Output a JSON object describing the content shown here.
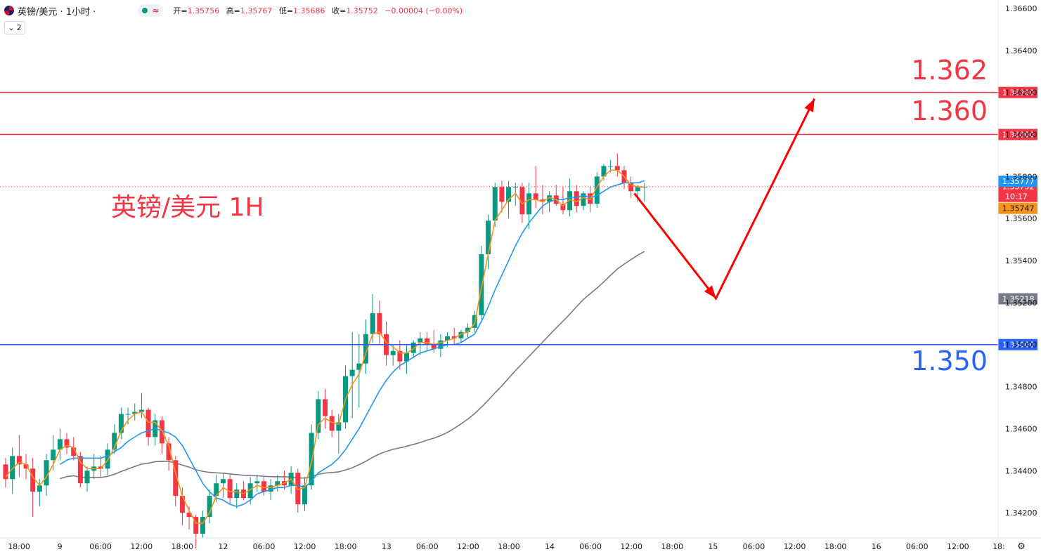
{
  "legend": {
    "symbol": "英镑/美元 · 1小时 ·",
    "approx_icon": "≈",
    "ohlc": {
      "open_label": "开=",
      "open": "1.35756",
      "high_label": "高=",
      "high": "1.35767",
      "low_label": "低=",
      "low": "1.35686",
      "close_label": "收=",
      "close": "1.35752",
      "change": "−0.00004 (−0.00%)"
    }
  },
  "indicator_toggle": {
    "count": "2",
    "icon": "chevron-down-icon"
  },
  "annotations": {
    "title": "英镑/美元 1H",
    "level_1362": "1.362",
    "level_1360": "1.360",
    "level_1350": "1.350"
  },
  "colors": {
    "up": "#089981",
    "down": "#f23645",
    "ma_fast": "#f7931a",
    "ma_mid": "#2196f3",
    "ma_slow": "#787b86",
    "resistance": "#f23645",
    "support": "#2962ff",
    "arrow": "#ff0000"
  },
  "chart_data": {
    "type": "candlestick",
    "ylim": [
      1.3408,
      1.3664
    ],
    "price_ticks": [
      "1.34200",
      "1.34400",
      "1.34600",
      "1.34800",
      "1.35000",
      "1.35200",
      "1.35400",
      "1.35600",
      "1.35800",
      "1.36000",
      "1.36200",
      "1.36400",
      "1.36600"
    ],
    "time_ticks": [
      "18:00",
      "9",
      "06:00",
      "12:00",
      "18:00",
      "12",
      "06:00",
      "12:00",
      "18:00",
      "13",
      "06:00",
      "12:00",
      "18:00",
      "14",
      "06:00",
      "12:00",
      "18:00",
      "15",
      "06:00",
      "12:00",
      "18:00",
      "16",
      "06:00",
      "12:00",
      "18:"
    ],
    "price_lines": [
      {
        "name": "resistance-1.362",
        "value": 1.362,
        "label": "1.36200",
        "color": "#f23645"
      },
      {
        "name": "resistance-1.360",
        "value": 1.36,
        "label": "1.36000",
        "color": "#f23645"
      },
      {
        "name": "support-1.350",
        "value": 1.35,
        "label": "1.35000",
        "color": "#2962ff"
      }
    ],
    "last_price": {
      "value": 1.35752,
      "label": "1.35752",
      "countdown": "10:17"
    },
    "ma_labels": [
      {
        "name": "ma-fast-value",
        "value": 1.35747,
        "label": "1.35747",
        "color": "#f7931a"
      },
      {
        "name": "ma-mid-value",
        "value": 1.35777,
        "label": "1.35777",
        "color": "#2196f3"
      },
      {
        "name": "ma-slow-value",
        "value": 1.35218,
        "label": "1.35218",
        "color": "#787b86"
      }
    ],
    "forecast_path": [
      {
        "t": 92.5,
        "price": 1.3572
      },
      {
        "t": 104.5,
        "price": 1.3522
      },
      {
        "t": 119,
        "price": 1.3617
      }
    ],
    "candles": [
      [
        1.3443,
        1.3446,
        1.3432,
        1.3436
      ],
      [
        1.3436,
        1.3451,
        1.3429,
        1.3447
      ],
      [
        1.3447,
        1.3457,
        1.3437,
        1.3443
      ],
      [
        1.3443,
        1.3448,
        1.3436,
        1.3441
      ],
      [
        1.3441,
        1.3446,
        1.3418,
        1.343
      ],
      [
        1.343,
        1.3436,
        1.3423,
        1.3433
      ],
      [
        1.3433,
        1.3448,
        1.3428,
        1.3445
      ],
      [
        1.3445,
        1.3457,
        1.344,
        1.345
      ],
      [
        1.345,
        1.346,
        1.3445,
        1.3455
      ],
      [
        1.3455,
        1.3458,
        1.3448,
        1.3451
      ],
      [
        1.3451,
        1.3456,
        1.3445,
        1.3447
      ],
      [
        1.3447,
        1.3449,
        1.3432,
        1.3434
      ],
      [
        1.3434,
        1.3442,
        1.343,
        1.344
      ],
      [
        1.344,
        1.3448,
        1.3436,
        1.3442
      ],
      [
        1.3442,
        1.3447,
        1.3437,
        1.3441
      ],
      [
        1.3441,
        1.3453,
        1.3438,
        1.345
      ],
      [
        1.345,
        1.3462,
        1.3448,
        1.3458
      ],
      [
        1.3458,
        1.347,
        1.3455,
        1.3467
      ],
      [
        1.3467,
        1.347,
        1.3462,
        1.3467
      ],
      [
        1.3467,
        1.3472,
        1.3464,
        1.3468
      ],
      [
        1.3468,
        1.3477,
        1.3465,
        1.3469
      ],
      [
        1.3469,
        1.347,
        1.3452,
        1.3456
      ],
      [
        1.3456,
        1.3467,
        1.3452,
        1.3464
      ],
      [
        1.3464,
        1.3466,
        1.3448,
        1.3453
      ],
      [
        1.3453,
        1.3456,
        1.344,
        1.3445
      ],
      [
        1.3445,
        1.3447,
        1.3423,
        1.3428
      ],
      [
        1.3428,
        1.3432,
        1.3414,
        1.342
      ],
      [
        1.342,
        1.3423,
        1.3412,
        1.3418
      ],
      [
        1.3418,
        1.3419,
        1.3403,
        1.341
      ],
      [
        1.341,
        1.3421,
        1.3408,
        1.3418
      ],
      [
        1.3418,
        1.3431,
        1.3415,
        1.3428
      ],
      [
        1.3428,
        1.3438,
        1.3425,
        1.3434
      ],
      [
        1.3434,
        1.3439,
        1.3427,
        1.3436
      ],
      [
        1.3436,
        1.3438,
        1.3424,
        1.3427
      ],
      [
        1.3427,
        1.3434,
        1.3422,
        1.3431
      ],
      [
        1.3431,
        1.3435,
        1.3426,
        1.3427
      ],
      [
        1.3427,
        1.3437,
        1.3424,
        1.3434
      ],
      [
        1.3434,
        1.3438,
        1.343,
        1.3435
      ],
      [
        1.3435,
        1.3437,
        1.3428,
        1.343
      ],
      [
        1.343,
        1.3436,
        1.3426,
        1.3433
      ],
      [
        1.3433,
        1.3438,
        1.343,
        1.3435
      ],
      [
        1.3435,
        1.344,
        1.3431,
        1.3433
      ],
      [
        1.3433,
        1.3442,
        1.3429,
        1.3439
      ],
      [
        1.3439,
        1.3441,
        1.342,
        1.3424
      ],
      [
        1.3424,
        1.3437,
        1.3421,
        1.3433
      ],
      [
        1.3433,
        1.3462,
        1.3431,
        1.3458
      ],
      [
        1.3458,
        1.3478,
        1.3455,
        1.3474
      ],
      [
        1.3474,
        1.3479,
        1.346,
        1.3466
      ],
      [
        1.3466,
        1.3469,
        1.3456,
        1.3459
      ],
      [
        1.3459,
        1.3467,
        1.3448,
        1.3463
      ],
      [
        1.3463,
        1.349,
        1.346,
        1.3485
      ],
      [
        1.3485,
        1.3506,
        1.3465,
        1.3488
      ],
      [
        1.3488,
        1.3505,
        1.347,
        1.3491
      ],
      [
        1.3491,
        1.3512,
        1.3486,
        1.3505
      ],
      [
        1.3505,
        1.3524,
        1.3501,
        1.3515
      ],
      [
        1.3515,
        1.3521,
        1.35,
        1.3505
      ],
      [
        1.3505,
        1.3511,
        1.349,
        1.3495
      ],
      [
        1.3495,
        1.35,
        1.349,
        1.3497
      ],
      [
        1.3497,
        1.3502,
        1.3488,
        1.3492
      ],
      [
        1.3492,
        1.35,
        1.3486,
        1.3496
      ],
      [
        1.3496,
        1.3502,
        1.3494,
        1.3501
      ],
      [
        1.3501,
        1.3506,
        1.3495,
        1.3503
      ],
      [
        1.3503,
        1.3506,
        1.3497,
        1.35
      ],
      [
        1.35,
        1.3507,
        1.3496,
        1.3498
      ],
      [
        1.3498,
        1.3505,
        1.3494,
        1.3502
      ],
      [
        1.3502,
        1.3506,
        1.3499,
        1.3504
      ],
      [
        1.3504,
        1.3508,
        1.35,
        1.3503
      ],
      [
        1.3503,
        1.3507,
        1.3501,
        1.3506
      ],
      [
        1.3506,
        1.351,
        1.3503,
        1.3508
      ],
      [
        1.3508,
        1.3516,
        1.3506,
        1.3514
      ],
      [
        1.3514,
        1.3547,
        1.3512,
        1.3543
      ],
      [
        1.3543,
        1.3562,
        1.3536,
        1.3559
      ],
      [
        1.3559,
        1.3577,
        1.3556,
        1.3575
      ],
      [
        1.3575,
        1.3578,
        1.3563,
        1.3568
      ],
      [
        1.3568,
        1.3578,
        1.356,
        1.3575
      ],
      [
        1.3575,
        1.3577,
        1.3566,
        1.3575
      ],
      [
        1.3575,
        1.3577,
        1.3558,
        1.3562
      ],
      [
        1.3562,
        1.3577,
        1.3555,
        1.3572
      ],
      [
        1.3572,
        1.3585,
        1.3565,
        1.3569
      ],
      [
        1.3569,
        1.3576,
        1.3562,
        1.3568
      ],
      [
        1.3568,
        1.3573,
        1.3563,
        1.3571
      ],
      [
        1.3571,
        1.3576,
        1.3566,
        1.3567
      ],
      [
        1.3567,
        1.3575,
        1.3562,
        1.3564
      ],
      [
        1.3564,
        1.3579,
        1.3561,
        1.3573
      ],
      [
        1.3573,
        1.3576,
        1.3563,
        1.3566
      ],
      [
        1.3566,
        1.3573,
        1.3564,
        1.3572
      ],
      [
        1.3572,
        1.3575,
        1.3563,
        1.3567
      ],
      [
        1.3567,
        1.3582,
        1.3565,
        1.358
      ],
      [
        1.358,
        1.3586,
        1.3578,
        1.3585
      ],
      [
        1.3585,
        1.3588,
        1.3582,
        1.3585
      ],
      [
        1.3585,
        1.3591,
        1.358,
        1.3583
      ],
      [
        1.3583,
        1.3585,
        1.3574,
        1.3577
      ],
      [
        1.3577,
        1.358,
        1.357,
        1.3573
      ],
      [
        1.3573,
        1.3576,
        1.3568,
        1.3575
      ],
      [
        1.3575,
        1.3577,
        1.3568,
        1.3575
      ]
    ],
    "ma_fast": [
      1.3437,
      1.3441,
      1.3444,
      1.3443,
      1.3437,
      1.3433,
      1.3437,
      1.3443,
      1.345,
      1.3452,
      1.3451,
      1.3444,
      1.3441,
      1.3441,
      1.3441,
      1.3445,
      1.3451,
      1.3459,
      1.3464,
      1.3467,
      1.3468,
      1.3463,
      1.3463,
      1.3459,
      1.3452,
      1.3439,
      1.3428,
      1.3421,
      1.3415,
      1.3415,
      1.342,
      1.3428,
      1.3432,
      1.343,
      1.343,
      1.3429,
      1.3431,
      1.3433,
      1.3432,
      1.3432,
      1.3433,
      1.3434,
      1.3436,
      1.3431,
      1.3432,
      1.3444,
      1.3462,
      1.3465,
      1.3463,
      1.3462,
      1.3474,
      1.3481,
      1.3486,
      1.3496,
      1.3505,
      1.3506,
      1.3501,
      1.3499,
      1.3496,
      1.3496,
      1.3498,
      1.3501,
      1.3501,
      1.35,
      1.3501,
      1.3502,
      1.3503,
      1.3505,
      1.3506,
      1.351,
      1.3527,
      1.3543,
      1.3559,
      1.3564,
      1.3569,
      1.3572,
      1.3567,
      1.3569,
      1.3569,
      1.3568,
      1.357,
      1.3569,
      1.3566,
      1.3569,
      1.3568,
      1.357,
      1.3569,
      1.3575,
      1.358,
      1.3583,
      1.3583,
      1.358,
      1.3576,
      1.3575,
      1.3575
    ],
    "ma_mid": [
      null,
      null,
      null,
      null,
      null,
      null,
      null,
      null,
      1.3443,
      1.3445,
      1.3446,
      1.3446,
      1.3446,
      1.3446,
      1.3446,
      1.3447,
      1.3449,
      1.3451,
      1.3454,
      1.3456,
      1.3458,
      1.3459,
      1.346,
      1.3459,
      1.3458,
      1.3456,
      1.3452,
      1.3446,
      1.344,
      1.3434,
      1.343,
      1.3427,
      1.3426,
      1.3424,
      1.3423,
      1.3424,
      1.3426,
      1.3429,
      1.343,
      1.3431,
      1.3432,
      1.3432,
      1.3433,
      1.3433,
      1.3432,
      1.3435,
      1.3439,
      1.3441,
      1.3443,
      1.3446,
      1.345,
      1.3455,
      1.346,
      1.3466,
      1.3472,
      1.3478,
      1.3483,
      1.3487,
      1.349,
      1.3492,
      1.3494,
      1.3496,
      1.3497,
      1.3498,
      1.3499,
      1.35,
      1.35,
      1.3501,
      1.3503,
      1.3505,
      1.3511,
      1.3518,
      1.3526,
      1.3533,
      1.354,
      1.3547,
      1.3553,
      1.3558,
      1.3562,
      1.3566,
      1.3568,
      1.3569,
      1.3569,
      1.357,
      1.357,
      1.3571,
      1.357,
      1.3571,
      1.3573,
      1.3575,
      1.3576,
      1.3577,
      1.3577,
      1.3577,
      1.3578
    ],
    "ma_slow": [
      null,
      null,
      null,
      null,
      null,
      null,
      null,
      null,
      null,
      null,
      null,
      null,
      null,
      null,
      null,
      null,
      null,
      null,
      null,
      null,
      null,
      null,
      null,
      null,
      null,
      null,
      null,
      null,
      null,
      null,
      null,
      null,
      null,
      null,
      null,
      null,
      null,
      null,
      null,
      null,
      null,
      null,
      null,
      null,
      null,
      null,
      null,
      null,
      null,
      null,
      null,
      null,
      null,
      null,
      null,
      null,
      null,
      null,
      null,
      null,
      null,
      null,
      null,
      null,
      null,
      null,
      null,
      null,
      null,
      null,
      null,
      null,
      null,
      null,
      null,
      null,
      null,
      null,
      null,
      null,
      null,
      null,
      null,
      null,
      null,
      null,
      null,
      null,
      null,
      null,
      null,
      null,
      null,
      null,
      null
    ]
  }
}
